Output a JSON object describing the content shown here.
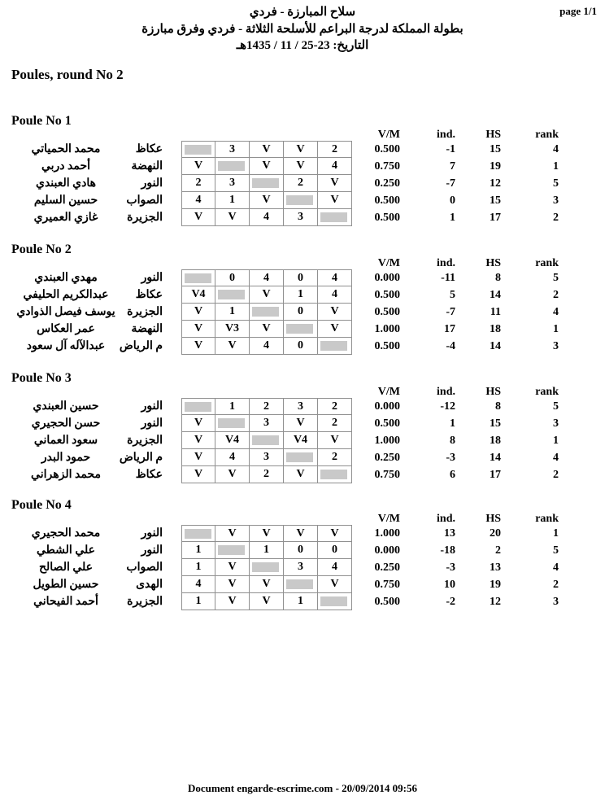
{
  "page": {
    "page_label": "page 1/1",
    "title_line1": "سلاح المبارزة - فردي",
    "title_line2": "بطولة المملكة لدرجة البراعم للأسلحة الثلاثة - فردي وفرق مبارزة",
    "title_line3": "التاريخ: 23-25 / 11 / 1435هـ",
    "section_title": "Poules, round No 2",
    "footer": "Document engarde-escrime.com  - 20/09/2014 09:56"
  },
  "stats_headers": [
    "V/M",
    "ind.",
    "HS",
    "rank"
  ],
  "colors": {
    "diagonal_fill": "#c9c9c9",
    "grid_border": "#909090"
  },
  "poules": [
    {
      "title": "Poule No 1",
      "fencers": [
        {
          "name": "محمد الحمياتي",
          "club": "عكاظ",
          "scores": [
            null,
            "3",
            "V",
            "V",
            "2"
          ],
          "vm": "0.500",
          "ind": "-1",
          "hs": "15",
          "rank": "4"
        },
        {
          "name": "أحمد دربي",
          "club": "النهضة",
          "scores": [
            "V",
            null,
            "V",
            "V",
            "4"
          ],
          "vm": "0.750",
          "ind": "7",
          "hs": "19",
          "rank": "1"
        },
        {
          "name": "هادي العبندي",
          "club": "النور",
          "scores": [
            "2",
            "3",
            null,
            "2",
            "V"
          ],
          "vm": "0.250",
          "ind": "-7",
          "hs": "12",
          "rank": "5"
        },
        {
          "name": "حسين السليم",
          "club": "الصواب",
          "scores": [
            "4",
            "1",
            "V",
            null,
            "V"
          ],
          "vm": "0.500",
          "ind": "0",
          "hs": "15",
          "rank": "3"
        },
        {
          "name": "غازي العميري",
          "club": "الجزيرة",
          "scores": [
            "V",
            "V",
            "4",
            "3",
            null
          ],
          "vm": "0.500",
          "ind": "1",
          "hs": "17",
          "rank": "2"
        }
      ]
    },
    {
      "title": "Poule No 2",
      "fencers": [
        {
          "name": "مهدي العبندي",
          "club": "النور",
          "scores": [
            null,
            "0",
            "4",
            "0",
            "4"
          ],
          "vm": "0.000",
          "ind": "-11",
          "hs": "8",
          "rank": "5"
        },
        {
          "name": "عبدالكريم الحليفي",
          "club": "عكاظ",
          "scores": [
            "V4",
            null,
            "V",
            "1",
            "4"
          ],
          "vm": "0.500",
          "ind": "5",
          "hs": "14",
          "rank": "2"
        },
        {
          "name": "يوسف فيصل الذوادي",
          "club": "الجزيرة",
          "scores": [
            "V",
            "1",
            null,
            "0",
            "V"
          ],
          "vm": "0.500",
          "ind": "-7",
          "hs": "11",
          "rank": "4"
        },
        {
          "name": "عمر العكاس",
          "club": "النهضة",
          "scores": [
            "V",
            "V3",
            "V",
            null,
            "V"
          ],
          "vm": "1.000",
          "ind": "17",
          "hs": "18",
          "rank": "1"
        },
        {
          "name": "عبدالآله آل سعود",
          "club": "م الرياض",
          "scores": [
            "V",
            "V",
            "4",
            "0",
            null
          ],
          "vm": "0.500",
          "ind": "-4",
          "hs": "14",
          "rank": "3"
        }
      ]
    },
    {
      "title": "Poule No 3",
      "fencers": [
        {
          "name": "حسين العبندي",
          "club": "النور",
          "scores": [
            null,
            "1",
            "2",
            "3",
            "2"
          ],
          "vm": "0.000",
          "ind": "-12",
          "hs": "8",
          "rank": "5"
        },
        {
          "name": "حسن الحجيري",
          "club": "النور",
          "scores": [
            "V",
            null,
            "3",
            "V",
            "2"
          ],
          "vm": "0.500",
          "ind": "1",
          "hs": "15",
          "rank": "3"
        },
        {
          "name": "سعود العماني",
          "club": "الجزيرة",
          "scores": [
            "V",
            "V4",
            null,
            "V4",
            "V"
          ],
          "vm": "1.000",
          "ind": "8",
          "hs": "18",
          "rank": "1"
        },
        {
          "name": "حمود البدر",
          "club": "م الرياض",
          "scores": [
            "V",
            "4",
            "3",
            null,
            "2"
          ],
          "vm": "0.250",
          "ind": "-3",
          "hs": "14",
          "rank": "4"
        },
        {
          "name": "محمد الزهراني",
          "club": "عكاظ",
          "scores": [
            "V",
            "V",
            "2",
            "V",
            null
          ],
          "vm": "0.750",
          "ind": "6",
          "hs": "17",
          "rank": "2"
        }
      ]
    },
    {
      "title": "Poule No 4",
      "fencers": [
        {
          "name": "محمد الحجيري",
          "club": "النور",
          "scores": [
            null,
            "V",
            "V",
            "V",
            "V"
          ],
          "vm": "1.000",
          "ind": "13",
          "hs": "20",
          "rank": "1"
        },
        {
          "name": "علي الشطي",
          "club": "النور",
          "scores": [
            "1",
            null,
            "1",
            "0",
            "0"
          ],
          "vm": "0.000",
          "ind": "-18",
          "hs": "2",
          "rank": "5"
        },
        {
          "name": "علي الصالح",
          "club": "الصواب",
          "scores": [
            "1",
            "V",
            null,
            "3",
            "4"
          ],
          "vm": "0.250",
          "ind": "-3",
          "hs": "13",
          "rank": "4"
        },
        {
          "name": "حسين الطويل",
          "club": "الهدى",
          "scores": [
            "4",
            "V",
            "V",
            null,
            "V"
          ],
          "vm": "0.750",
          "ind": "10",
          "hs": "19",
          "rank": "2"
        },
        {
          "name": "أحمد الفيحاني",
          "club": "الجزيرة",
          "scores": [
            "1",
            "V",
            "V",
            "1",
            null
          ],
          "vm": "0.500",
          "ind": "-2",
          "hs": "12",
          "rank": "3"
        }
      ]
    }
  ]
}
